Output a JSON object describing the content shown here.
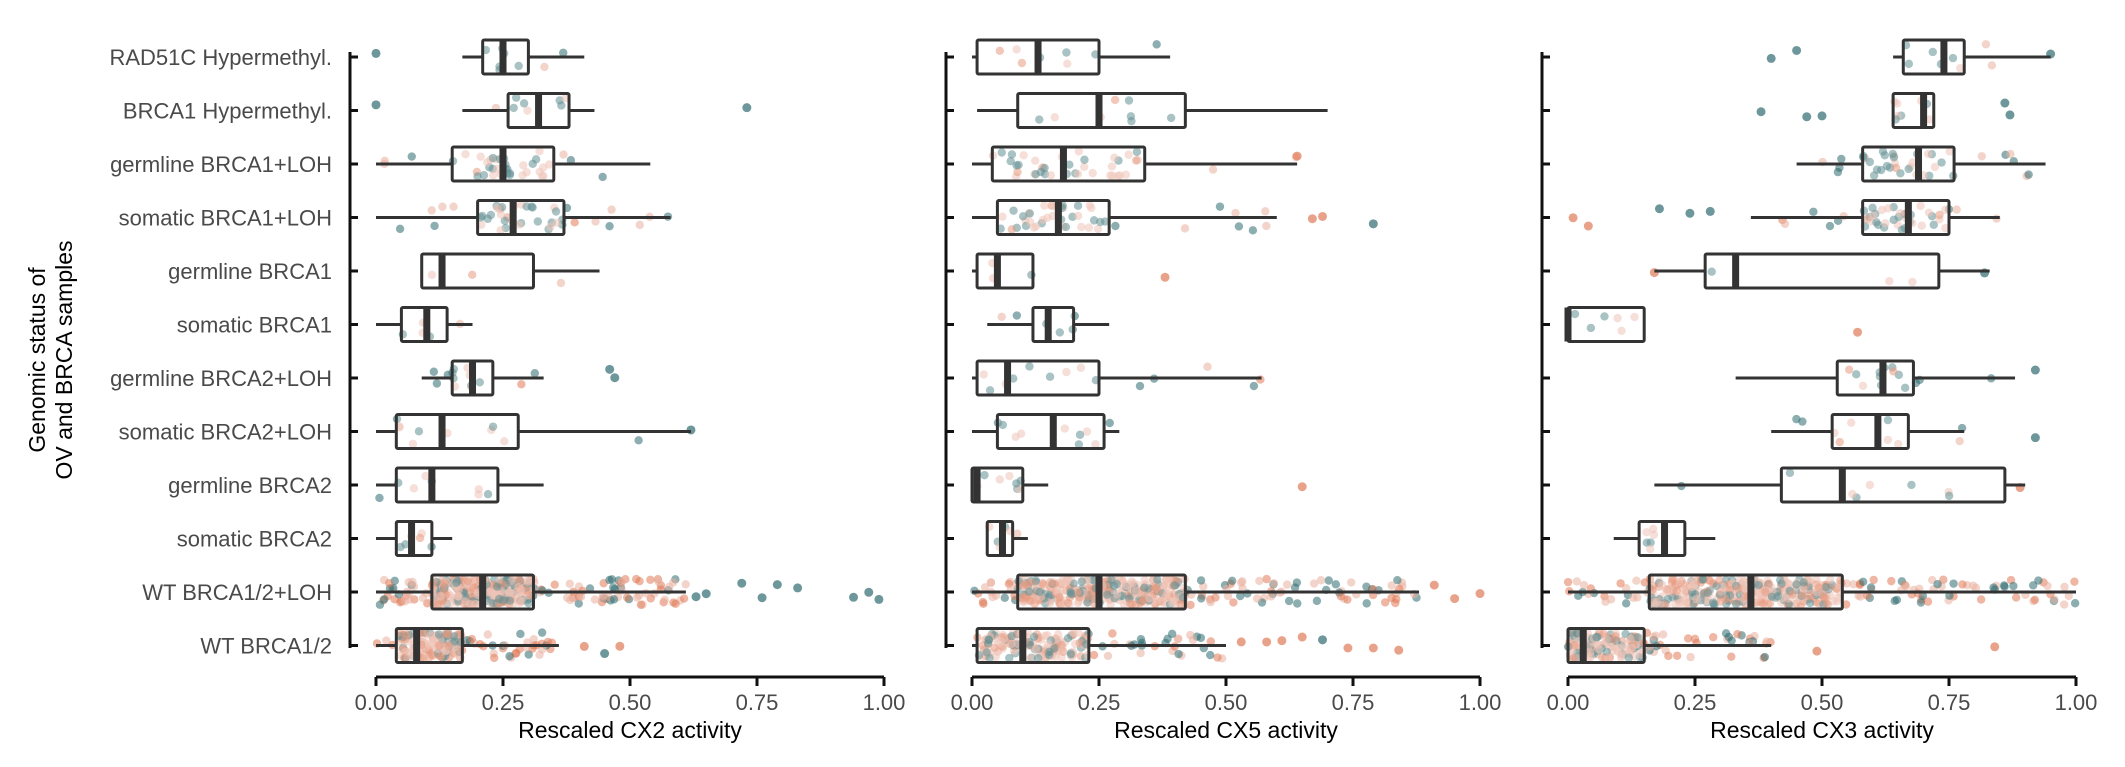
{
  "chart_data": {
    "type": "box",
    "ylabel": "Genomic status of\nOV and BRCA samples",
    "categories": [
      "RAD51C Hypermethyl.",
      "BRCA1 Hypermethyl.",
      "germline BRCA1+LOH",
      "somatic BRCA1+LOH",
      "germline BRCA1",
      "somatic BRCA1",
      "germline BRCA2+LOH",
      "somatic BRCA2+LOH",
      "germline BRCA2",
      "somatic BRCA2",
      "WT BRCA1/2+LOH",
      "WT BRCA1/2"
    ],
    "xlim": [
      0,
      1
    ],
    "xticks": [
      "0.00",
      "0.25",
      "0.50",
      "0.75",
      "1.00"
    ],
    "grid": false,
    "legend": "none",
    "point_colors": {
      "teal": "#2f6b6f",
      "salmon": "#e07a58",
      "blush": "#eab0a0",
      "box_stroke": "#333333"
    },
    "panels": [
      {
        "xlabel": "Rescaled CX2 activity",
        "boxes": [
          {
            "q1": 0.21,
            "median": 0.25,
            "q3": 0.3,
            "wlo": 0.17,
            "whi": 0.41
          },
          {
            "q1": 0.26,
            "median": 0.32,
            "q3": 0.38,
            "wlo": 0.17,
            "whi": 0.43
          },
          {
            "q1": 0.15,
            "median": 0.25,
            "q3": 0.35,
            "wlo": 0.0,
            "whi": 0.54
          },
          {
            "q1": 0.2,
            "median": 0.27,
            "q3": 0.37,
            "wlo": 0.0,
            "whi": 0.58
          },
          {
            "q1": 0.09,
            "median": 0.13,
            "q3": 0.31,
            "wlo": 0.09,
            "whi": 0.44
          },
          {
            "q1": 0.05,
            "median": 0.1,
            "q3": 0.14,
            "wlo": 0.0,
            "whi": 0.19
          },
          {
            "q1": 0.15,
            "median": 0.19,
            "q3": 0.23,
            "wlo": 0.09,
            "whi": 0.33
          },
          {
            "q1": 0.04,
            "median": 0.13,
            "q3": 0.28,
            "wlo": 0.0,
            "whi": 0.62
          },
          {
            "q1": 0.04,
            "median": 0.11,
            "q3": 0.24,
            "wlo": 0.0,
            "whi": 0.33
          },
          {
            "q1": 0.04,
            "median": 0.07,
            "q3": 0.11,
            "wlo": 0.0,
            "whi": 0.15
          },
          {
            "q1": 0.11,
            "median": 0.21,
            "q3": 0.31,
            "wlo": 0.0,
            "whi": 0.61
          },
          {
            "q1": 0.04,
            "median": 0.08,
            "q3": 0.17,
            "wlo": 0.0,
            "whi": 0.36
          }
        ],
        "outliers": [
          [
            0,
            0.0,
            "teal"
          ],
          [
            1,
            0.0,
            "teal"
          ],
          [
            1,
            0.73,
            "teal"
          ],
          [
            10,
            0.63,
            "teal"
          ],
          [
            10,
            0.65,
            "teal"
          ],
          [
            10,
            0.72,
            "teal"
          ],
          [
            10,
            0.76,
            "teal"
          ],
          [
            10,
            0.79,
            "teal"
          ],
          [
            10,
            0.83,
            "teal"
          ],
          [
            10,
            0.94,
            "teal"
          ],
          [
            10,
            0.97,
            "teal"
          ],
          [
            10,
            0.99,
            "teal"
          ],
          [
            11,
            0.41,
            "salmon"
          ],
          [
            11,
            0.45,
            "teal"
          ],
          [
            11,
            0.48,
            "salmon"
          ],
          [
            6,
            0.46,
            "teal"
          ],
          [
            6,
            0.47,
            "teal"
          ],
          [
            7,
            0.62,
            "teal"
          ]
        ]
      },
      {
        "xlabel": "Rescaled CX5 activity",
        "boxes": [
          {
            "q1": 0.01,
            "median": 0.13,
            "q3": 0.25,
            "wlo": 0.0,
            "whi": 0.39
          },
          {
            "q1": 0.09,
            "median": 0.25,
            "q3": 0.42,
            "wlo": 0.01,
            "whi": 0.7
          },
          {
            "q1": 0.04,
            "median": 0.18,
            "q3": 0.34,
            "wlo": 0.0,
            "whi": 0.64
          },
          {
            "q1": 0.05,
            "median": 0.17,
            "q3": 0.27,
            "wlo": 0.0,
            "whi": 0.6
          },
          {
            "q1": 0.01,
            "median": 0.05,
            "q3": 0.12,
            "wlo": 0.0,
            "whi": 0.12
          },
          {
            "q1": 0.12,
            "median": 0.15,
            "q3": 0.2,
            "wlo": 0.03,
            "whi": 0.27
          },
          {
            "q1": 0.01,
            "median": 0.07,
            "q3": 0.25,
            "wlo": 0.0,
            "whi": 0.57
          },
          {
            "q1": 0.05,
            "median": 0.16,
            "q3": 0.26,
            "wlo": 0.0,
            "whi": 0.29
          },
          {
            "q1": 0.0,
            "median": 0.01,
            "q3": 0.1,
            "wlo": 0.0,
            "whi": 0.15
          },
          {
            "q1": 0.03,
            "median": 0.06,
            "q3": 0.08,
            "wlo": 0.03,
            "whi": 0.11
          },
          {
            "q1": 0.09,
            "median": 0.25,
            "q3": 0.42,
            "wlo": 0.0,
            "whi": 0.88
          },
          {
            "q1": 0.01,
            "median": 0.1,
            "q3": 0.23,
            "wlo": 0.0,
            "whi": 0.5
          }
        ],
        "outliers": [
          [
            2,
            0.64,
            "salmon"
          ],
          [
            3,
            0.67,
            "salmon"
          ],
          [
            3,
            0.69,
            "salmon"
          ],
          [
            3,
            0.79,
            "teal"
          ],
          [
            4,
            0.38,
            "salmon"
          ],
          [
            8,
            0.65,
            "salmon"
          ],
          [
            10,
            0.91,
            "salmon"
          ],
          [
            10,
            0.95,
            "salmon"
          ],
          [
            10,
            1.0,
            "salmon"
          ],
          [
            11,
            0.53,
            "salmon"
          ],
          [
            11,
            0.58,
            "salmon"
          ],
          [
            11,
            0.61,
            "salmon"
          ],
          [
            11,
            0.65,
            "salmon"
          ],
          [
            11,
            0.69,
            "teal"
          ],
          [
            11,
            0.74,
            "salmon"
          ],
          [
            11,
            0.79,
            "salmon"
          ],
          [
            11,
            0.84,
            "salmon"
          ]
        ]
      },
      {
        "xlabel": "Rescaled CX3 activity",
        "boxes": [
          {
            "q1": 0.66,
            "median": 0.74,
            "q3": 0.78,
            "wlo": 0.64,
            "whi": 0.95
          },
          {
            "q1": 0.64,
            "median": 0.7,
            "q3": 0.72,
            "wlo": 0.64,
            "whi": 0.72
          },
          {
            "q1": 0.58,
            "median": 0.69,
            "q3": 0.76,
            "wlo": 0.45,
            "whi": 0.94
          },
          {
            "q1": 0.58,
            "median": 0.67,
            "q3": 0.75,
            "wlo": 0.36,
            "whi": 0.85
          },
          {
            "q1": 0.27,
            "median": 0.33,
            "q3": 0.73,
            "wlo": 0.17,
            "whi": 0.83
          },
          {
            "q1": 0.0,
            "median": 0.0,
            "q3": 0.15,
            "wlo": 0.0,
            "whi": 0.15
          },
          {
            "q1": 0.53,
            "median": 0.62,
            "q3": 0.68,
            "wlo": 0.33,
            "whi": 0.88
          },
          {
            "q1": 0.52,
            "median": 0.61,
            "q3": 0.67,
            "wlo": 0.4,
            "whi": 0.78
          },
          {
            "q1": 0.42,
            "median": 0.54,
            "q3": 0.86,
            "wlo": 0.17,
            "whi": 0.9
          },
          {
            "q1": 0.14,
            "median": 0.19,
            "q3": 0.23,
            "wlo": 0.09,
            "whi": 0.29
          },
          {
            "q1": 0.16,
            "median": 0.36,
            "q3": 0.54,
            "wlo": 0.0,
            "whi": 1.0
          },
          {
            "q1": 0.0,
            "median": 0.03,
            "q3": 0.15,
            "wlo": 0.0,
            "whi": 0.4
          }
        ],
        "outliers": [
          [
            0,
            0.4,
            "teal"
          ],
          [
            0,
            0.45,
            "teal"
          ],
          [
            0,
            0.95,
            "teal"
          ],
          [
            1,
            0.38,
            "teal"
          ],
          [
            1,
            0.47,
            "teal"
          ],
          [
            1,
            0.5,
            "teal"
          ],
          [
            1,
            0.86,
            "teal"
          ],
          [
            1,
            0.87,
            "teal"
          ],
          [
            3,
            0.01,
            "salmon"
          ],
          [
            3,
            0.04,
            "salmon"
          ],
          [
            3,
            0.18,
            "teal"
          ],
          [
            3,
            0.24,
            "teal"
          ],
          [
            3,
            0.28,
            "teal"
          ],
          [
            4,
            0.17,
            "salmon"
          ],
          [
            4,
            0.82,
            "teal"
          ],
          [
            5,
            0.57,
            "salmon"
          ],
          [
            6,
            0.92,
            "teal"
          ],
          [
            7,
            0.92,
            "teal"
          ],
          [
            8,
            0.89,
            "salmon"
          ],
          [
            11,
            0.49,
            "salmon"
          ],
          [
            11,
            0.84,
            "salmon"
          ]
        ]
      }
    ]
  }
}
